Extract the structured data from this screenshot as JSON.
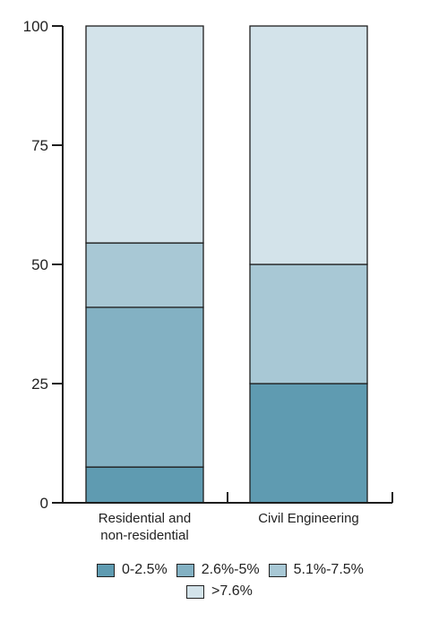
{
  "chart_data": {
    "type": "bar",
    "stacked": true,
    "categories": [
      [
        "Residential and",
        "non-residential"
      ],
      [
        "Civil Engineering"
      ]
    ],
    "series": [
      {
        "name": "0-2.5%",
        "values": [
          7.5,
          25
        ],
        "color": "#5f9bb1"
      },
      {
        "name": "2.6%-5%",
        "values": [
          33.5,
          0
        ],
        "color": "#83b1c3"
      },
      {
        "name": "5.1%-7.5%",
        "values": [
          13.5,
          25
        ],
        "color": "#a8c8d5"
      },
      {
        "name": ">7.6%",
        "values": [
          45.5,
          50
        ],
        "color": "#d3e3ea"
      }
    ],
    "ylim": [
      0,
      100
    ],
    "yticks": [
      0,
      25,
      50,
      75,
      100
    ],
    "legend_position": "bottom"
  }
}
